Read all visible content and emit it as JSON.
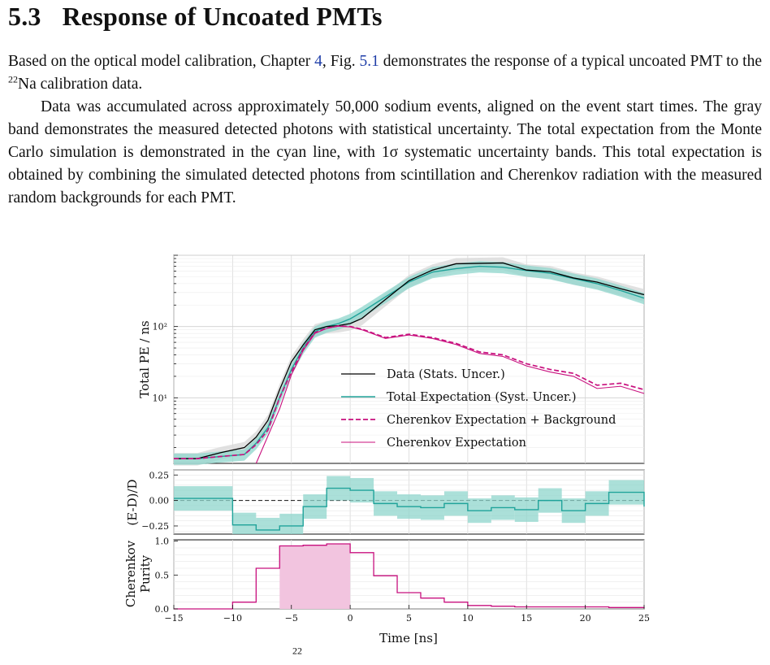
{
  "section": {
    "number": "5.3",
    "title": "Response of Uncoated PMTs"
  },
  "paragraph1": {
    "before": "Based on the optical model calibration, Chapter ",
    "chapter_ref": "4",
    "mid": ", Fig. ",
    "fig_ref": "5.1",
    "after1": " demonstrates the response of a typical uncoated PMT to the ",
    "isotope_mass": "22",
    "isotope": "Na",
    "after2": " calibration data."
  },
  "paragraph2": "Data was accumulated across approximately 50,000 sodium events, aligned on the event start times. The gray band demonstrates the measured detected photons with statistical uncertainty. The total expectation from the Monte Carlo simulation is demonstrated in the cyan line, with 1σ systematic uncertainty bands. This total expectation is obtained by combining the simulated detected photons from scintillation and Cherenkov radiation with the measured random backgrounds for each PMT.",
  "caption_fragment": "22",
  "colors": {
    "data": "#000000",
    "total": "#20a39a",
    "total_band": "#8fd6cc",
    "cherenkov": "#c8107e",
    "purity_fill": "#f2c4df",
    "data_band": "#d9d9d9"
  },
  "chart_data": [
    {
      "type": "line",
      "panel": "top",
      "ylabel": "Total PE / ns",
      "yscale": "log",
      "ylim": [
        1.2,
        1000
      ],
      "xlim": [
        -15,
        25
      ],
      "yticks": [
        "10¹",
        "10²"
      ],
      "legend_position": "center-right",
      "legend": [
        "Data (Stats. Uncer.)",
        "Total Expectation (Syst. Uncer.)",
        "Cherenkov Expectation + Background",
        "Cherenkov Expectation"
      ],
      "x": [
        -15,
        -13,
        -11,
        -9,
        -8,
        -7,
        -6,
        -5,
        -4,
        -3,
        -2,
        -1,
        0,
        1,
        3,
        5,
        7,
        9,
        11,
        13,
        15,
        17,
        19,
        21,
        23,
        25
      ],
      "series": [
        {
          "name": "Data (Stats. Uncer.)",
          "values": [
            1.4,
            1.4,
            1.7,
            2.0,
            2.8,
            4.8,
            13,
            32,
            55,
            90,
            100,
            103,
            110,
            130,
            240,
            440,
            620,
            760,
            770,
            780,
            620,
            590,
            480,
            420,
            340,
            280
          ]
        },
        {
          "name": "Total Expectation (Syst. Uncer.)",
          "values": [
            1.4,
            1.4,
            1.5,
            1.6,
            2.3,
            3.8,
            10,
            25,
            50,
            85,
            100,
            110,
            128,
            160,
            260,
            420,
            580,
            650,
            700,
            680,
            610,
            560,
            470,
            400,
            320,
            250
          ]
        },
        {
          "name": "Cherenkov Expectation + Background",
          "values": [
            1.4,
            1.4,
            1.5,
            1.6,
            2.2,
            3.5,
            10,
            23,
            48,
            82,
            95,
            102,
            100,
            92,
            70,
            78,
            70,
            58,
            44,
            40,
            30,
            25,
            22,
            15,
            16,
            13
          ]
        },
        {
          "name": "Cherenkov Expectation",
          "values": [
            null,
            null,
            null,
            null,
            null,
            null,
            7,
            21,
            46,
            80,
            94,
            101,
            99,
            90,
            68,
            76,
            68,
            56,
            42,
            38,
            28,
            23,
            20,
            13.5,
            14.5,
            11.5
          ]
        }
      ]
    },
    {
      "type": "line",
      "panel": "middle",
      "ylabel": "(E-D)/D",
      "ylim": [
        -0.33,
        0.3
      ],
      "xlim": [
        -15,
        25
      ],
      "yticks": [
        "0.25",
        "0.00",
        "−0.25"
      ],
      "x_edges": [
        -15,
        -10,
        -8,
        -6,
        -4,
        -2,
        0,
        2,
        4,
        6,
        8,
        10,
        12,
        14,
        16,
        18,
        20,
        22,
        25
      ],
      "values": [
        0.02,
        -0.24,
        -0.29,
        -0.25,
        -0.06,
        0.12,
        0.1,
        -0.03,
        -0.06,
        -0.07,
        -0.03,
        -0.1,
        -0.07,
        -0.09,
        0.0,
        -0.1,
        -0.03,
        0.08,
        -0.06
      ],
      "band_halfwidth": 0.12
    },
    {
      "type": "line",
      "panel": "bottom",
      "ylabel": "Cherenkov Purity",
      "xlabel": "Time [ns]",
      "ylim": [
        0,
        1.02
      ],
      "xlim": [
        -15,
        25
      ],
      "yticks": [
        "0.0",
        "0.5",
        "1.0"
      ],
      "xticks": [
        "−15",
        "−10",
        "−5",
        "0",
        "5",
        "10",
        "15",
        "20",
        "25"
      ],
      "x_edges": [
        -15,
        -10,
        -8,
        -6,
        -4,
        -2,
        0,
        2,
        4,
        6,
        8,
        10,
        12,
        14,
        16,
        18,
        20,
        22,
        25
      ],
      "values": [
        0.0,
        0.1,
        0.6,
        0.93,
        0.94,
        0.96,
        0.83,
        0.49,
        0.24,
        0.16,
        0.1,
        0.05,
        0.04,
        0.03,
        0.03,
        0.03,
        0.03,
        0.02,
        0.03
      ],
      "shaded_range": [
        -6,
        0
      ]
    }
  ]
}
